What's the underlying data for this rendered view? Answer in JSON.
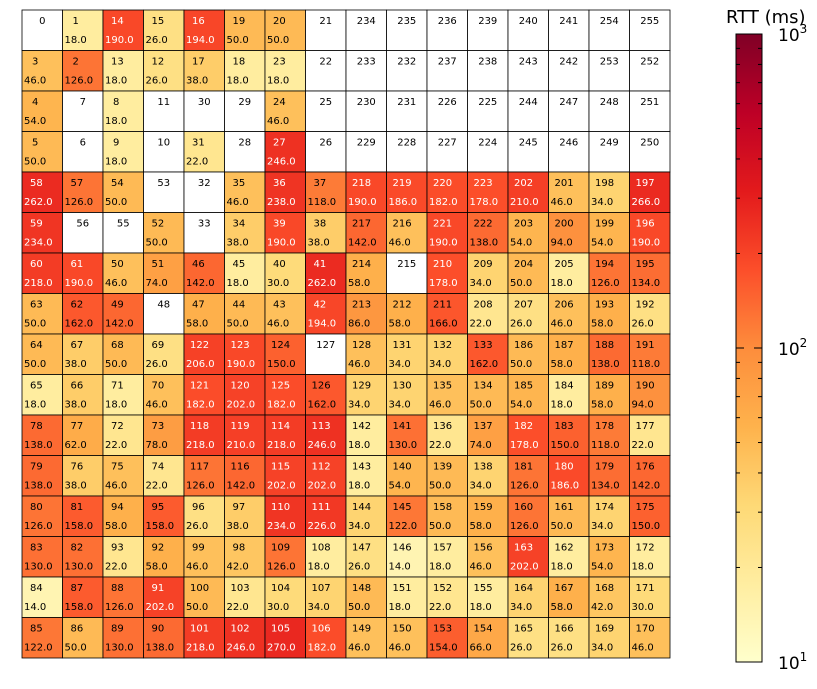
{
  "chart_data": {
    "type": "heatmap",
    "title": "",
    "colorbar": {
      "label": "RTT (ms)",
      "scale": "log",
      "range": [
        10,
        1000
      ],
      "tick_labels": [
        {
          "base": "10",
          "exp": "3",
          "value": 1000
        },
        {
          "base": "10",
          "exp": "2",
          "value": 100
        },
        {
          "base": "10",
          "exp": "1",
          "value": 10
        }
      ],
      "colormap": "YlOrRd"
    },
    "grid": [
      [
        {
          "id": "0",
          "rtt": null
        },
        {
          "id": "1",
          "rtt": "18.0"
        },
        {
          "id": "14",
          "rtt": "190.0"
        },
        {
          "id": "15",
          "rtt": "26.0"
        },
        {
          "id": "16",
          "rtt": "194.0"
        },
        {
          "id": "19",
          "rtt": "50.0"
        },
        {
          "id": "20",
          "rtt": "50.0"
        },
        {
          "id": "21",
          "rtt": null
        },
        {
          "id": "234",
          "rtt": null
        },
        {
          "id": "235",
          "rtt": null
        },
        {
          "id": "236",
          "rtt": null
        },
        {
          "id": "239",
          "rtt": null
        },
        {
          "id": "240",
          "rtt": null
        },
        {
          "id": "241",
          "rtt": null
        },
        {
          "id": "254",
          "rtt": null
        },
        {
          "id": "255",
          "rtt": null
        }
      ],
      [
        {
          "id": "3",
          "rtt": "46.0"
        },
        {
          "id": "2",
          "rtt": "126.0"
        },
        {
          "id": "13",
          "rtt": "18.0"
        },
        {
          "id": "12",
          "rtt": "26.0"
        },
        {
          "id": "17",
          "rtt": "38.0"
        },
        {
          "id": "18",
          "rtt": "18.0"
        },
        {
          "id": "23",
          "rtt": "18.0"
        },
        {
          "id": "22",
          "rtt": null
        },
        {
          "id": "233",
          "rtt": null
        },
        {
          "id": "232",
          "rtt": null
        },
        {
          "id": "237",
          "rtt": null
        },
        {
          "id": "238",
          "rtt": null
        },
        {
          "id": "243",
          "rtt": null
        },
        {
          "id": "242",
          "rtt": null
        },
        {
          "id": "253",
          "rtt": null
        },
        {
          "id": "252",
          "rtt": null
        }
      ],
      [
        {
          "id": "4",
          "rtt": "54.0"
        },
        {
          "id": "7",
          "rtt": null
        },
        {
          "id": "8",
          "rtt": "18.0"
        },
        {
          "id": "11",
          "rtt": null
        },
        {
          "id": "30",
          "rtt": null
        },
        {
          "id": "29",
          "rtt": null
        },
        {
          "id": "24",
          "rtt": "46.0"
        },
        {
          "id": "25",
          "rtt": null
        },
        {
          "id": "230",
          "rtt": null
        },
        {
          "id": "231",
          "rtt": null
        },
        {
          "id": "226",
          "rtt": null
        },
        {
          "id": "225",
          "rtt": null
        },
        {
          "id": "244",
          "rtt": null
        },
        {
          "id": "247",
          "rtt": null
        },
        {
          "id": "248",
          "rtt": null
        },
        {
          "id": "251",
          "rtt": null
        }
      ],
      [
        {
          "id": "5",
          "rtt": "50.0"
        },
        {
          "id": "6",
          "rtt": null
        },
        {
          "id": "9",
          "rtt": "18.0"
        },
        {
          "id": "10",
          "rtt": null
        },
        {
          "id": "31",
          "rtt": "22.0"
        },
        {
          "id": "28",
          "rtt": null
        },
        {
          "id": "27",
          "rtt": "246.0"
        },
        {
          "id": "26",
          "rtt": null
        },
        {
          "id": "229",
          "rtt": null
        },
        {
          "id": "228",
          "rtt": null
        },
        {
          "id": "227",
          "rtt": null
        },
        {
          "id": "224",
          "rtt": null
        },
        {
          "id": "245",
          "rtt": null
        },
        {
          "id": "246",
          "rtt": null
        },
        {
          "id": "249",
          "rtt": null
        },
        {
          "id": "250",
          "rtt": null
        }
      ],
      [
        {
          "id": "58",
          "rtt": "262.0"
        },
        {
          "id": "57",
          "rtt": "126.0"
        },
        {
          "id": "54",
          "rtt": "50.0"
        },
        {
          "id": "53",
          "rtt": null
        },
        {
          "id": "32",
          "rtt": null
        },
        {
          "id": "35",
          "rtt": "46.0"
        },
        {
          "id": "36",
          "rtt": "238.0"
        },
        {
          "id": "37",
          "rtt": "118.0"
        },
        {
          "id": "218",
          "rtt": "190.0"
        },
        {
          "id": "219",
          "rtt": "186.0"
        },
        {
          "id": "220",
          "rtt": "182.0"
        },
        {
          "id": "223",
          "rtt": "178.0"
        },
        {
          "id": "202",
          "rtt": "210.0"
        },
        {
          "id": "201",
          "rtt": "46.0"
        },
        {
          "id": "198",
          "rtt": "34.0"
        },
        {
          "id": "197",
          "rtt": "266.0"
        }
      ],
      [
        {
          "id": "59",
          "rtt": "234.0"
        },
        {
          "id": "56",
          "rtt": null
        },
        {
          "id": "55",
          "rtt": null
        },
        {
          "id": "52",
          "rtt": "50.0"
        },
        {
          "id": "33",
          "rtt": null
        },
        {
          "id": "34",
          "rtt": "38.0"
        },
        {
          "id": "39",
          "rtt": "190.0"
        },
        {
          "id": "38",
          "rtt": "38.0"
        },
        {
          "id": "217",
          "rtt": "142.0"
        },
        {
          "id": "216",
          "rtt": "46.0"
        },
        {
          "id": "221",
          "rtt": "190.0"
        },
        {
          "id": "222",
          "rtt": "138.0"
        },
        {
          "id": "203",
          "rtt": "54.0"
        },
        {
          "id": "200",
          "rtt": "94.0"
        },
        {
          "id": "199",
          "rtt": "54.0"
        },
        {
          "id": "196",
          "rtt": "190.0"
        }
      ],
      [
        {
          "id": "60",
          "rtt": "218.0"
        },
        {
          "id": "61",
          "rtt": "190.0"
        },
        {
          "id": "50",
          "rtt": "46.0"
        },
        {
          "id": "51",
          "rtt": "74.0"
        },
        {
          "id": "46",
          "rtt": "142.0"
        },
        {
          "id": "45",
          "rtt": "18.0"
        },
        {
          "id": "40",
          "rtt": "30.0"
        },
        {
          "id": "41",
          "rtt": "262.0"
        },
        {
          "id": "214",
          "rtt": "58.0"
        },
        {
          "id": "215",
          "rtt": null
        },
        {
          "id": "210",
          "rtt": "178.0"
        },
        {
          "id": "209",
          "rtt": "34.0"
        },
        {
          "id": "204",
          "rtt": "50.0"
        },
        {
          "id": "205",
          "rtt": "18.0"
        },
        {
          "id": "194",
          "rtt": "126.0"
        },
        {
          "id": "195",
          "rtt": "134.0"
        }
      ],
      [
        {
          "id": "63",
          "rtt": "50.0"
        },
        {
          "id": "62",
          "rtt": "162.0"
        },
        {
          "id": "49",
          "rtt": "142.0"
        },
        {
          "id": "48",
          "rtt": null
        },
        {
          "id": "47",
          "rtt": "58.0"
        },
        {
          "id": "44",
          "rtt": "50.0"
        },
        {
          "id": "43",
          "rtt": "46.0"
        },
        {
          "id": "42",
          "rtt": "194.0"
        },
        {
          "id": "213",
          "rtt": "86.0"
        },
        {
          "id": "212",
          "rtt": "58.0"
        },
        {
          "id": "211",
          "rtt": "166.0"
        },
        {
          "id": "208",
          "rtt": "22.0"
        },
        {
          "id": "207",
          "rtt": "26.0"
        },
        {
          "id": "206",
          "rtt": "46.0"
        },
        {
          "id": "193",
          "rtt": "58.0"
        },
        {
          "id": "192",
          "rtt": "26.0"
        }
      ],
      [
        {
          "id": "64",
          "rtt": "50.0"
        },
        {
          "id": "67",
          "rtt": "38.0"
        },
        {
          "id": "68",
          "rtt": "50.0"
        },
        {
          "id": "69",
          "rtt": "26.0"
        },
        {
          "id": "122",
          "rtt": "206.0"
        },
        {
          "id": "123",
          "rtt": "190.0"
        },
        {
          "id": "124",
          "rtt": "150.0"
        },
        {
          "id": "127",
          "rtt": null
        },
        {
          "id": "128",
          "rtt": "46.0"
        },
        {
          "id": "131",
          "rtt": "34.0"
        },
        {
          "id": "132",
          "rtt": "34.0"
        },
        {
          "id": "133",
          "rtt": "162.0"
        },
        {
          "id": "186",
          "rtt": "50.0"
        },
        {
          "id": "187",
          "rtt": "58.0"
        },
        {
          "id": "188",
          "rtt": "138.0"
        },
        {
          "id": "191",
          "rtt": "118.0"
        }
      ],
      [
        {
          "id": "65",
          "rtt": "18.0"
        },
        {
          "id": "66",
          "rtt": "38.0"
        },
        {
          "id": "71",
          "rtt": "18.0"
        },
        {
          "id": "70",
          "rtt": "46.0"
        },
        {
          "id": "121",
          "rtt": "182.0"
        },
        {
          "id": "120",
          "rtt": "202.0"
        },
        {
          "id": "125",
          "rtt": "182.0"
        },
        {
          "id": "126",
          "rtt": "162.0"
        },
        {
          "id": "129",
          "rtt": "34.0"
        },
        {
          "id": "130",
          "rtt": "34.0"
        },
        {
          "id": "135",
          "rtt": "46.0"
        },
        {
          "id": "134",
          "rtt": "50.0"
        },
        {
          "id": "185",
          "rtt": "54.0"
        },
        {
          "id": "184",
          "rtt": "18.0"
        },
        {
          "id": "189",
          "rtt": "58.0"
        },
        {
          "id": "190",
          "rtt": "94.0"
        }
      ],
      [
        {
          "id": "78",
          "rtt": "138.0"
        },
        {
          "id": "77",
          "rtt": "62.0"
        },
        {
          "id": "72",
          "rtt": "22.0"
        },
        {
          "id": "73",
          "rtt": "78.0"
        },
        {
          "id": "118",
          "rtt": "218.0"
        },
        {
          "id": "119",
          "rtt": "210.0"
        },
        {
          "id": "114",
          "rtt": "218.0"
        },
        {
          "id": "113",
          "rtt": "246.0"
        },
        {
          "id": "142",
          "rtt": "18.0"
        },
        {
          "id": "141",
          "rtt": "130.0"
        },
        {
          "id": "136",
          "rtt": "22.0"
        },
        {
          "id": "137",
          "rtt": "74.0"
        },
        {
          "id": "182",
          "rtt": "178.0"
        },
        {
          "id": "183",
          "rtt": "150.0"
        },
        {
          "id": "178",
          "rtt": "118.0"
        },
        {
          "id": "177",
          "rtt": "22.0"
        }
      ],
      [
        {
          "id": "79",
          "rtt": "138.0"
        },
        {
          "id": "76",
          "rtt": "38.0"
        },
        {
          "id": "75",
          "rtt": "46.0"
        },
        {
          "id": "74",
          "rtt": "22.0"
        },
        {
          "id": "117",
          "rtt": "126.0"
        },
        {
          "id": "116",
          "rtt": "142.0"
        },
        {
          "id": "115",
          "rtt": "202.0"
        },
        {
          "id": "112",
          "rtt": "202.0"
        },
        {
          "id": "143",
          "rtt": "18.0"
        },
        {
          "id": "140",
          "rtt": "54.0"
        },
        {
          "id": "139",
          "rtt": "50.0"
        },
        {
          "id": "138",
          "rtt": "34.0"
        },
        {
          "id": "181",
          "rtt": "126.0"
        },
        {
          "id": "180",
          "rtt": "186.0"
        },
        {
          "id": "179",
          "rtt": "134.0"
        },
        {
          "id": "176",
          "rtt": "142.0"
        }
      ],
      [
        {
          "id": "80",
          "rtt": "126.0"
        },
        {
          "id": "81",
          "rtt": "158.0"
        },
        {
          "id": "94",
          "rtt": "58.0"
        },
        {
          "id": "95",
          "rtt": "158.0"
        },
        {
          "id": "96",
          "rtt": "26.0"
        },
        {
          "id": "97",
          "rtt": "38.0"
        },
        {
          "id": "110",
          "rtt": "234.0"
        },
        {
          "id": "111",
          "rtt": "226.0"
        },
        {
          "id": "144",
          "rtt": "34.0"
        },
        {
          "id": "145",
          "rtt": "122.0"
        },
        {
          "id": "158",
          "rtt": "50.0"
        },
        {
          "id": "159",
          "rtt": "58.0"
        },
        {
          "id": "160",
          "rtt": "126.0"
        },
        {
          "id": "161",
          "rtt": "50.0"
        },
        {
          "id": "174",
          "rtt": "34.0"
        },
        {
          "id": "175",
          "rtt": "150.0"
        }
      ],
      [
        {
          "id": "83",
          "rtt": "130.0"
        },
        {
          "id": "82",
          "rtt": "130.0"
        },
        {
          "id": "93",
          "rtt": "22.0"
        },
        {
          "id": "92",
          "rtt": "58.0"
        },
        {
          "id": "99",
          "rtt": "46.0"
        },
        {
          "id": "98",
          "rtt": "42.0"
        },
        {
          "id": "109",
          "rtt": "126.0"
        },
        {
          "id": "108",
          "rtt": "18.0"
        },
        {
          "id": "147",
          "rtt": "26.0"
        },
        {
          "id": "146",
          "rtt": "14.0"
        },
        {
          "id": "157",
          "rtt": "18.0"
        },
        {
          "id": "156",
          "rtt": "46.0"
        },
        {
          "id": "163",
          "rtt": "202.0"
        },
        {
          "id": "162",
          "rtt": "18.0"
        },
        {
          "id": "173",
          "rtt": "54.0"
        },
        {
          "id": "172",
          "rtt": "18.0"
        }
      ],
      [
        {
          "id": "84",
          "rtt": "14.0"
        },
        {
          "id": "87",
          "rtt": "158.0"
        },
        {
          "id": "88",
          "rtt": "126.0"
        },
        {
          "id": "91",
          "rtt": "202.0"
        },
        {
          "id": "100",
          "rtt": "50.0"
        },
        {
          "id": "103",
          "rtt": "22.0"
        },
        {
          "id": "104",
          "rtt": "30.0"
        },
        {
          "id": "107",
          "rtt": "34.0"
        },
        {
          "id": "148",
          "rtt": "50.0"
        },
        {
          "id": "151",
          "rtt": "18.0"
        },
        {
          "id": "152",
          "rtt": "22.0"
        },
        {
          "id": "155",
          "rtt": "18.0"
        },
        {
          "id": "164",
          "rtt": "34.0"
        },
        {
          "id": "167",
          "rtt": "58.0"
        },
        {
          "id": "168",
          "rtt": "42.0"
        },
        {
          "id": "171",
          "rtt": "30.0"
        }
      ],
      [
        {
          "id": "85",
          "rtt": "122.0"
        },
        {
          "id": "86",
          "rtt": "50.0"
        },
        {
          "id": "89",
          "rtt": "130.0"
        },
        {
          "id": "90",
          "rtt": "138.0"
        },
        {
          "id": "101",
          "rtt": "218.0"
        },
        {
          "id": "102",
          "rtt": "246.0"
        },
        {
          "id": "105",
          "rtt": "270.0"
        },
        {
          "id": "106",
          "rtt": "182.0"
        },
        {
          "id": "149",
          "rtt": "46.0"
        },
        {
          "id": "150",
          "rtt": "46.0"
        },
        {
          "id": "153",
          "rtt": "154.0"
        },
        {
          "id": "154",
          "rtt": "66.0"
        },
        {
          "id": "165",
          "rtt": "26.0"
        },
        {
          "id": "166",
          "rtt": "26.0"
        },
        {
          "id": "169",
          "rtt": "34.0"
        },
        {
          "id": "170",
          "rtt": "46.0"
        }
      ]
    ]
  }
}
